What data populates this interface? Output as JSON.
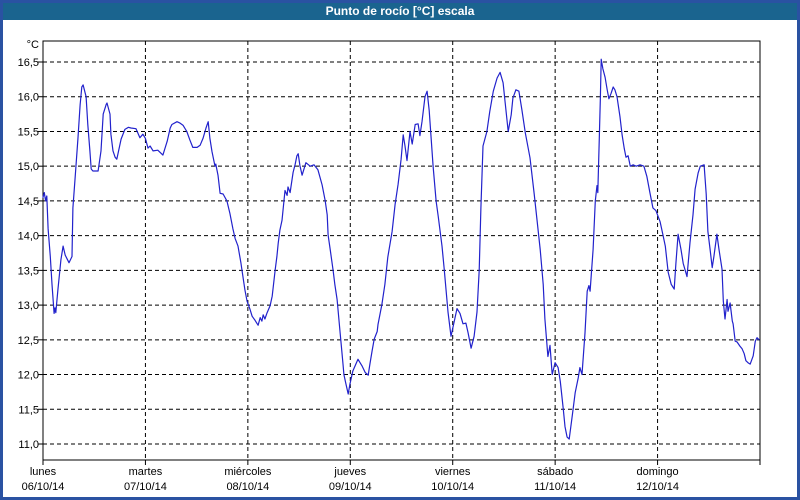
{
  "window": {
    "title": "Punto de rocío [°C] escala"
  },
  "colors": {
    "titlebar_bg": "#1a648f",
    "title_text": "#ffffff",
    "frame": "#2a52a2",
    "plot_bg": "#ffffff",
    "grid": "#000000",
    "axis": "#000000",
    "curve": "#2222cc"
  },
  "chart_data": {
    "type": "line",
    "title": "Punto de rocío [°C] escala",
    "xlabel": "",
    "ylabel": "°C",
    "grid": "dashed",
    "legend": "none",
    "ylim": [
      10.8,
      16.8
    ],
    "x_range_hours": [
      0,
      168
    ],
    "y_axis": {
      "unit": "°C",
      "ticks": [
        {
          "label": "16,5",
          "value": 16.5
        },
        {
          "label": "16,0",
          "value": 16.0
        },
        {
          "label": "15,5",
          "value": 15.5
        },
        {
          "label": "15,0",
          "value": 15.0
        },
        {
          "label": "14,5",
          "value": 14.5
        },
        {
          "label": "14,0",
          "value": 14.0
        },
        {
          "label": "13,5",
          "value": 13.5
        },
        {
          "label": "13,0",
          "value": 13.0
        },
        {
          "label": "12,5",
          "value": 12.5
        },
        {
          "label": "12,0",
          "value": 12.0
        },
        {
          "label": "11,5",
          "value": 11.5
        },
        {
          "label": "11,0",
          "value": 11.0
        }
      ]
    },
    "x_axis": {
      "days": [
        {
          "name": "lunes",
          "date": "06/10/14"
        },
        {
          "name": "martes",
          "date": "07/10/14"
        },
        {
          "name": "miércoles",
          "date": "08/10/14"
        },
        {
          "name": "jueves",
          "date": "09/10/14"
        },
        {
          "name": "viernes",
          "date": "10/10/14"
        },
        {
          "name": "sábado",
          "date": "11/10/14"
        },
        {
          "name": "domingo",
          "date": "12/10/14"
        }
      ]
    },
    "series": [
      {
        "name": "Punto de rocío",
        "color": "#2222cc",
        "x_unit": "hours_from_monday_00:00",
        "points": [
          [
            0.0,
            14.55
          ],
          [
            0.3,
            14.62
          ],
          [
            0.6,
            14.5
          ],
          [
            0.9,
            14.57
          ],
          [
            1.2,
            14.1
          ],
          [
            1.7,
            13.7
          ],
          [
            2.1,
            13.3
          ],
          [
            2.6,
            12.88
          ],
          [
            2.8,
            12.96
          ],
          [
            3.0,
            12.89
          ],
          [
            3.5,
            13.22
          ],
          [
            4.2,
            13.65
          ],
          [
            4.7,
            13.85
          ],
          [
            5.2,
            13.72
          ],
          [
            6.1,
            13.61
          ],
          [
            6.8,
            13.7
          ],
          [
            7.0,
            14.4
          ],
          [
            7.5,
            14.81
          ],
          [
            8.2,
            15.41
          ],
          [
            8.7,
            15.88
          ],
          [
            9.1,
            16.14
          ],
          [
            9.4,
            16.17
          ],
          [
            10.1,
            16.0
          ],
          [
            10.5,
            15.6
          ],
          [
            11.0,
            15.22
          ],
          [
            11.3,
            14.96
          ],
          [
            11.7,
            14.93
          ],
          [
            12.9,
            14.93
          ],
          [
            13.6,
            15.22
          ],
          [
            14.1,
            15.75
          ],
          [
            14.8,
            15.89
          ],
          [
            15.0,
            15.91
          ],
          [
            15.7,
            15.75
          ],
          [
            15.9,
            15.46
          ],
          [
            16.4,
            15.22
          ],
          [
            16.9,
            15.13
          ],
          [
            17.3,
            15.1
          ],
          [
            18.3,
            15.39
          ],
          [
            19.2,
            15.53
          ],
          [
            20.0,
            15.56
          ],
          [
            20.6,
            15.55
          ],
          [
            21.8,
            15.54
          ],
          [
            22.7,
            15.41
          ],
          [
            23.4,
            15.46
          ],
          [
            24.0,
            15.4
          ],
          [
            24.6,
            15.26
          ],
          [
            25.1,
            15.29
          ],
          [
            25.8,
            15.22
          ],
          [
            26.9,
            15.23
          ],
          [
            28.1,
            15.16
          ],
          [
            29.1,
            15.36
          ],
          [
            29.8,
            15.55
          ],
          [
            30.2,
            15.6
          ],
          [
            31.4,
            15.64
          ],
          [
            32.1,
            15.62
          ],
          [
            32.8,
            15.59
          ],
          [
            33.7,
            15.5
          ],
          [
            34.4,
            15.38
          ],
          [
            35.1,
            15.27
          ],
          [
            36.1,
            15.27
          ],
          [
            36.8,
            15.3
          ],
          [
            37.5,
            15.4
          ],
          [
            38.2,
            15.55
          ],
          [
            38.7,
            15.64
          ],
          [
            39.1,
            15.4
          ],
          [
            39.6,
            15.21
          ],
          [
            40.3,
            15.0
          ],
          [
            40.5,
            15.03
          ],
          [
            41.0,
            14.87
          ],
          [
            41.5,
            14.61
          ],
          [
            42.2,
            14.6
          ],
          [
            43.1,
            14.5
          ],
          [
            43.8,
            14.32
          ],
          [
            44.5,
            14.1
          ],
          [
            45.0,
            13.96
          ],
          [
            45.7,
            13.85
          ],
          [
            46.4,
            13.6
          ],
          [
            46.6,
            13.51
          ],
          [
            47.3,
            13.22
          ],
          [
            47.8,
            13.06
          ],
          [
            48.5,
            12.94
          ],
          [
            49.0,
            12.84
          ],
          [
            49.7,
            12.78
          ],
          [
            50.2,
            12.73
          ],
          [
            50.4,
            12.71
          ],
          [
            50.9,
            12.82
          ],
          [
            51.3,
            12.77
          ],
          [
            51.6,
            12.86
          ],
          [
            52.0,
            12.8
          ],
          [
            52.5,
            12.89
          ],
          [
            53.2,
            12.99
          ],
          [
            53.7,
            13.13
          ],
          [
            54.4,
            13.51
          ],
          [
            54.8,
            13.7
          ],
          [
            55.1,
            13.89
          ],
          [
            55.5,
            14.08
          ],
          [
            56.0,
            14.22
          ],
          [
            56.7,
            14.65
          ],
          [
            57.2,
            14.58
          ],
          [
            57.4,
            14.7
          ],
          [
            57.9,
            14.62
          ],
          [
            58.6,
            14.91
          ],
          [
            59.1,
            15.03
          ],
          [
            59.5,
            15.15
          ],
          [
            59.8,
            15.18
          ],
          [
            60.2,
            15.01
          ],
          [
            60.7,
            14.87
          ],
          [
            61.6,
            15.05
          ],
          [
            62.6,
            15.0
          ],
          [
            63.5,
            15.02
          ],
          [
            64.4,
            14.95
          ],
          [
            65.4,
            14.73
          ],
          [
            66.1,
            14.51
          ],
          [
            66.6,
            14.3
          ],
          [
            66.8,
            14.01
          ],
          [
            67.3,
            13.8
          ],
          [
            68.0,
            13.49
          ],
          [
            68.4,
            13.29
          ],
          [
            68.9,
            13.08
          ],
          [
            69.6,
            12.62
          ],
          [
            69.8,
            12.48
          ],
          [
            70.3,
            12.15
          ],
          [
            70.5,
            12.0
          ],
          [
            71.0,
            11.86
          ],
          [
            71.5,
            11.72
          ],
          [
            71.9,
            11.86
          ],
          [
            72.6,
            12.05
          ],
          [
            73.6,
            12.19
          ],
          [
            73.8,
            12.22
          ],
          [
            74.8,
            12.12
          ],
          [
            75.5,
            12.03
          ],
          [
            76.2,
            11.99
          ],
          [
            76.6,
            12.15
          ],
          [
            77.1,
            12.34
          ],
          [
            77.6,
            12.51
          ],
          [
            78.3,
            12.62
          ],
          [
            78.5,
            12.72
          ],
          [
            79.4,
            13.01
          ],
          [
            80.1,
            13.3
          ],
          [
            80.8,
            13.69
          ],
          [
            81.8,
            14.06
          ],
          [
            82.5,
            14.45
          ],
          [
            83.2,
            14.74
          ],
          [
            83.9,
            15.1
          ],
          [
            84.4,
            15.45
          ],
          [
            84.8,
            15.3
          ],
          [
            85.3,
            15.08
          ],
          [
            86.0,
            15.5
          ],
          [
            86.5,
            15.32
          ],
          [
            87.2,
            15.6
          ],
          [
            87.9,
            15.61
          ],
          [
            88.3,
            15.44
          ],
          [
            88.8,
            15.64
          ],
          [
            89.5,
            16.0
          ],
          [
            90.0,
            16.08
          ],
          [
            90.5,
            15.8
          ],
          [
            91.4,
            15.0
          ],
          [
            92.1,
            14.5
          ],
          [
            92.6,
            14.28
          ],
          [
            93.5,
            13.85
          ],
          [
            94.0,
            13.52
          ],
          [
            94.9,
            12.9
          ],
          [
            95.6,
            12.55
          ],
          [
            96.3,
            12.75
          ],
          [
            97.0,
            12.95
          ],
          [
            97.7,
            12.88
          ],
          [
            98.4,
            12.73
          ],
          [
            99.1,
            12.74
          ],
          [
            99.6,
            12.6
          ],
          [
            100.3,
            12.38
          ],
          [
            101.0,
            12.55
          ],
          [
            101.7,
            12.9
          ],
          [
            102.2,
            13.5
          ],
          [
            102.6,
            14.4
          ],
          [
            103.1,
            15.29
          ],
          [
            104.0,
            15.5
          ],
          [
            104.7,
            15.79
          ],
          [
            105.5,
            16.08
          ],
          [
            106.4,
            16.27
          ],
          [
            107.1,
            16.35
          ],
          [
            107.8,
            16.2
          ],
          [
            108.3,
            15.91
          ],
          [
            109.0,
            15.5
          ],
          [
            109.7,
            15.74
          ],
          [
            110.1,
            15.98
          ],
          [
            110.8,
            16.1
          ],
          [
            111.5,
            16.08
          ],
          [
            112.2,
            15.81
          ],
          [
            113.0,
            15.48
          ],
          [
            114.1,
            15.12
          ],
          [
            115.1,
            14.6
          ],
          [
            115.8,
            14.2
          ],
          [
            116.5,
            13.8
          ],
          [
            117.2,
            13.3
          ],
          [
            117.6,
            12.8
          ],
          [
            118.3,
            12.26
          ],
          [
            118.8,
            12.42
          ],
          [
            119.3,
            12.0
          ],
          [
            120.0,
            12.17
          ],
          [
            120.7,
            12.1
          ],
          [
            121.2,
            11.9
          ],
          [
            121.9,
            11.5
          ],
          [
            122.3,
            11.25
          ],
          [
            122.8,
            11.1
          ],
          [
            123.3,
            11.07
          ],
          [
            124.0,
            11.4
          ],
          [
            124.7,
            11.74
          ],
          [
            125.4,
            11.95
          ],
          [
            125.8,
            12.1
          ],
          [
            126.3,
            12.0
          ],
          [
            127.0,
            12.6
          ],
          [
            127.5,
            13.2
          ],
          [
            127.9,
            13.28
          ],
          [
            128.2,
            13.2
          ],
          [
            128.9,
            13.8
          ],
          [
            129.4,
            14.5
          ],
          [
            129.8,
            14.72
          ],
          [
            130.0,
            14.62
          ],
          [
            130.3,
            15.3
          ],
          [
            130.6,
            16.0
          ],
          [
            130.8,
            16.54
          ],
          [
            131.2,
            16.4
          ],
          [
            131.7,
            16.28
          ],
          [
            132.2,
            16.1
          ],
          [
            132.6,
            15.97
          ],
          [
            133.1,
            16.05
          ],
          [
            133.6,
            16.14
          ],
          [
            134.0,
            16.1
          ],
          [
            134.5,
            16.0
          ],
          [
            135.2,
            15.71
          ],
          [
            135.7,
            15.45
          ],
          [
            136.2,
            15.25
          ],
          [
            136.6,
            15.13
          ],
          [
            137.1,
            15.15
          ],
          [
            137.6,
            15.0
          ],
          [
            138.3,
            15.02
          ],
          [
            139.0,
            15.0
          ],
          [
            139.9,
            15.02
          ],
          [
            140.8,
            15.0
          ],
          [
            141.5,
            14.85
          ],
          [
            142.2,
            14.62
          ],
          [
            142.9,
            14.4
          ],
          [
            143.6,
            14.36
          ],
          [
            144.6,
            14.2
          ],
          [
            145.3,
            14.0
          ],
          [
            145.8,
            13.85
          ],
          [
            146.5,
            13.47
          ],
          [
            147.2,
            13.3
          ],
          [
            147.6,
            13.26
          ],
          [
            147.9,
            13.23
          ],
          [
            148.3,
            13.6
          ],
          [
            148.8,
            14.02
          ],
          [
            149.5,
            13.8
          ],
          [
            150.0,
            13.6
          ],
          [
            150.9,
            13.41
          ],
          [
            151.6,
            13.9
          ],
          [
            152.3,
            14.3
          ],
          [
            152.8,
            14.67
          ],
          [
            153.5,
            14.9
          ],
          [
            154.0,
            15.0
          ],
          [
            154.9,
            15.02
          ],
          [
            155.4,
            14.6
          ],
          [
            155.8,
            14.06
          ],
          [
            156.3,
            13.8
          ],
          [
            156.8,
            13.54
          ],
          [
            157.2,
            13.7
          ],
          [
            157.9,
            14.02
          ],
          [
            158.4,
            13.8
          ],
          [
            159.1,
            13.52
          ],
          [
            159.4,
            13.06
          ],
          [
            159.8,
            12.8
          ],
          [
            160.3,
            13.08
          ],
          [
            160.5,
            12.91
          ],
          [
            161.0,
            13.03
          ],
          [
            161.5,
            12.77
          ],
          [
            161.7,
            12.73
          ],
          [
            162.2,
            12.48
          ],
          [
            162.6,
            12.47
          ],
          [
            163.3,
            12.41
          ],
          [
            163.8,
            12.37
          ],
          [
            164.3,
            12.3
          ],
          [
            164.7,
            12.2
          ],
          [
            165.2,
            12.17
          ],
          [
            165.7,
            12.15
          ],
          [
            166.4,
            12.27
          ],
          [
            166.9,
            12.48
          ],
          [
            167.3,
            12.53
          ],
          [
            167.8,
            12.5
          ]
        ]
      }
    ]
  }
}
